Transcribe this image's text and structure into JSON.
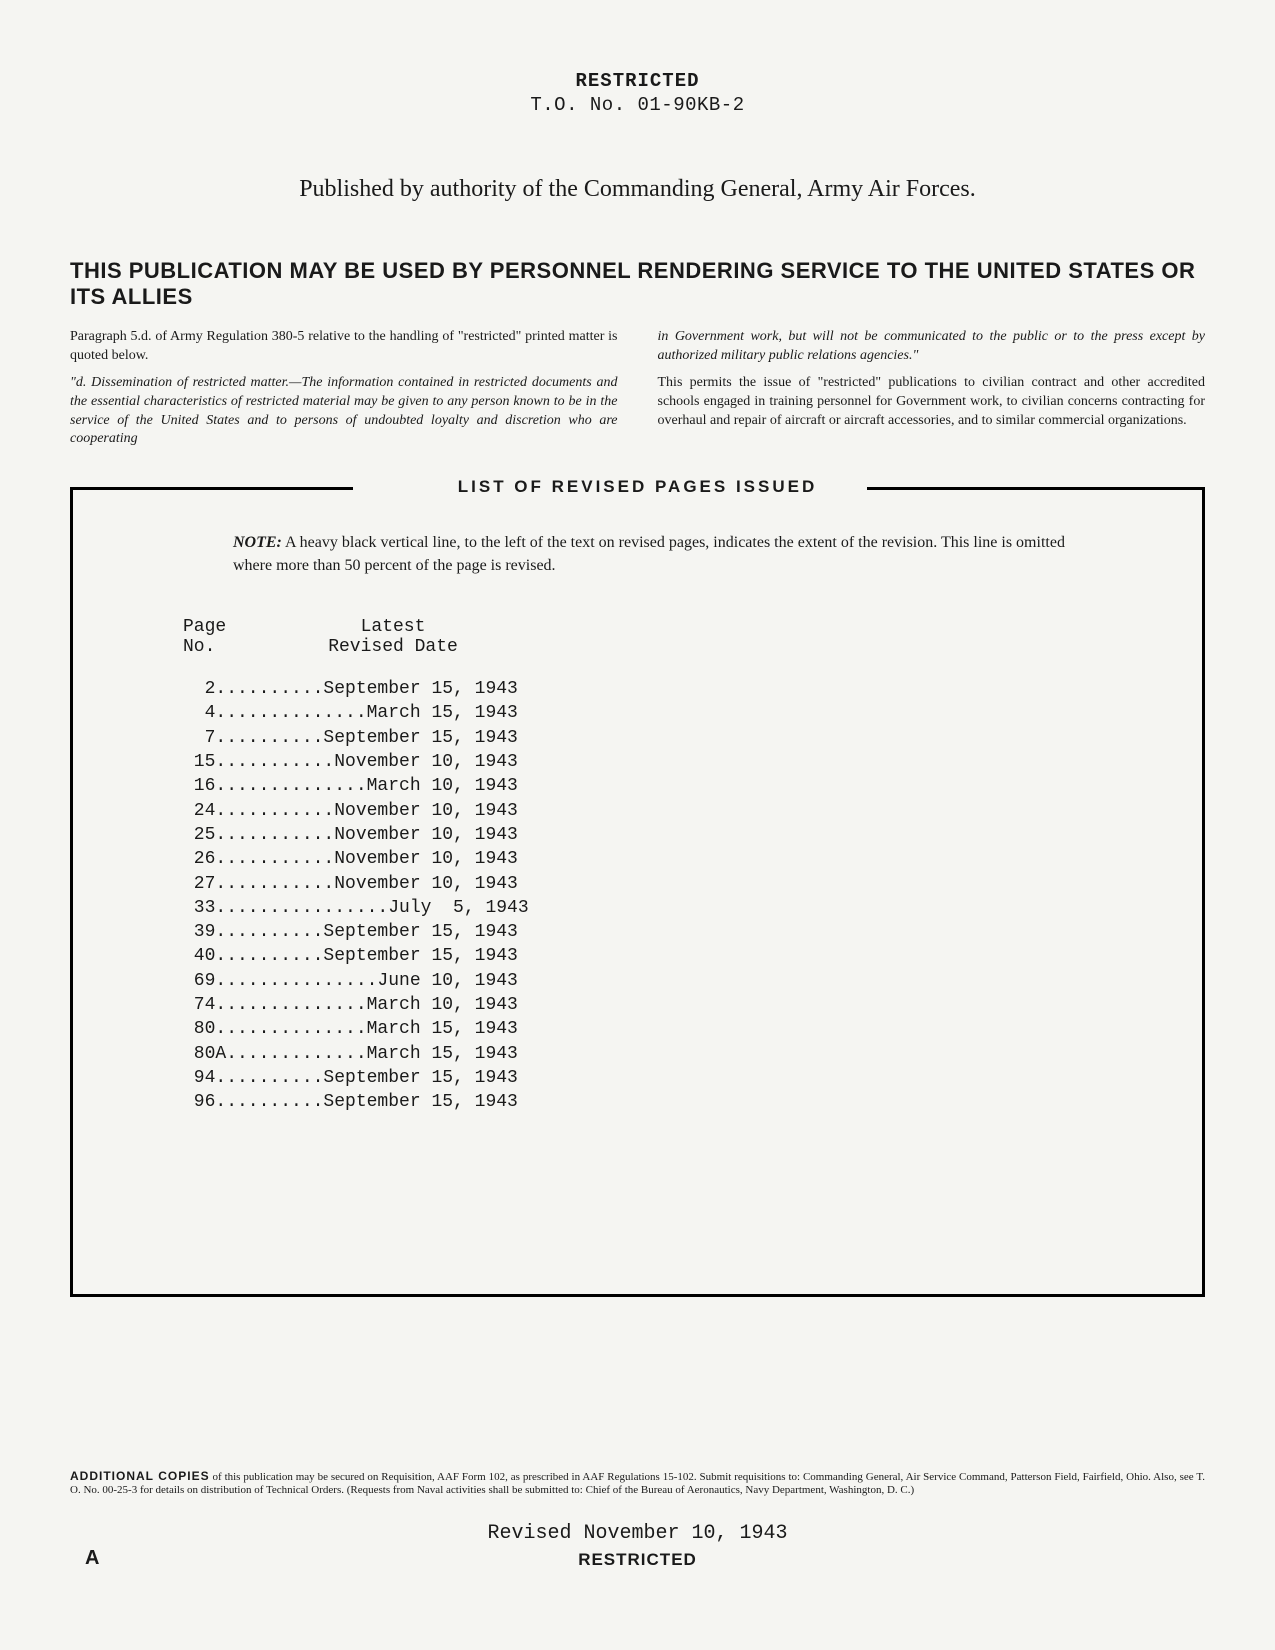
{
  "header": {
    "classification": "RESTRICTED",
    "doc_number": "T.O. No. 01-90KB-2"
  },
  "authority": "Published by authority of the Commanding General, Army Air Forces.",
  "notice_heading": "THIS PUBLICATION MAY BE USED BY PERSONNEL RENDERING SERVICE TO THE UNITED STATES OR ITS ALLIES",
  "left_col": {
    "p1a": "Paragraph 5.d. of Army Regulation 380-5 relative to the handling of \"restricted\" printed matter is quoted below.",
    "p2": "\"d. Dissemination of restricted matter.—The information contained in restricted documents and the essential characteristics of restricted material may be given to any person known to be in the service of the United States and to persons of undoubted loyalty and discretion who are cooperating"
  },
  "right_col": {
    "p1": "in Government work, but will not be communicated to the public or to the press except by authorized military public relations agencies.\"",
    "p2": "This permits the issue of \"restricted\" publications to civilian contract and other accredited schools engaged in training personnel for Government work, to civilian concerns contracting for overhaul and repair of aircraft or aircraft accessories, and to similar commercial organizations."
  },
  "revised_box": {
    "title": "LIST OF REVISED PAGES ISSUED",
    "note_label": "NOTE:",
    "note_text": " A heavy black vertical line, to the left of the text on revised pages, indicates the extent of the revision. This line is omitted where more than 50 percent of the page is revised.",
    "col_headers": {
      "page_line1": "Page",
      "page_line2": "No.",
      "date_line1": "Latest",
      "date_line2": "Revised Date"
    },
    "rows": [
      {
        "text": "  2..........September 15, 1943"
      },
      {
        "text": "  4..............March 15, 1943"
      },
      {
        "text": "  7..........September 15, 1943"
      },
      {
        "text": " 15...........November 10, 1943"
      },
      {
        "text": " 16..............March 10, 1943"
      },
      {
        "text": " 24...........November 10, 1943"
      },
      {
        "text": " 25...........November 10, 1943"
      },
      {
        "text": " 26...........November 10, 1943"
      },
      {
        "text": " 27...........November 10, 1943"
      },
      {
        "text": " 33................July  5, 1943"
      },
      {
        "text": " 39..........September 15, 1943"
      },
      {
        "text": " 40..........September 15, 1943"
      },
      {
        "text": " 69...............June 10, 1943"
      },
      {
        "text": " 74..............March 10, 1943"
      },
      {
        "text": " 80..............March 15, 1943"
      },
      {
        "text": " 80A.............March 15, 1943"
      },
      {
        "text": " 94..........September 15, 1943"
      },
      {
        "text": " 96..........September 15, 1943"
      }
    ]
  },
  "footer": {
    "additional_lead": "ADDITIONAL COPIES",
    "additional_text": " of this publication may be secured on Requisition, AAF Form 102, as prescribed in AAF Regulations 15-102. Submit requisitions to: Commanding General, Air Service Command, Patterson Field, Fairfield, Ohio. Also, see T. O. No. 00-25-3 for details on distribution of Technical Orders. (Requests from Naval activities shall be submitted to: Chief of the Bureau of Aeronautics, Navy Department, Washington, D. C.)",
    "revised_date": "Revised November 10, 1943",
    "classification": "RESTRICTED",
    "page_letter": "A"
  }
}
